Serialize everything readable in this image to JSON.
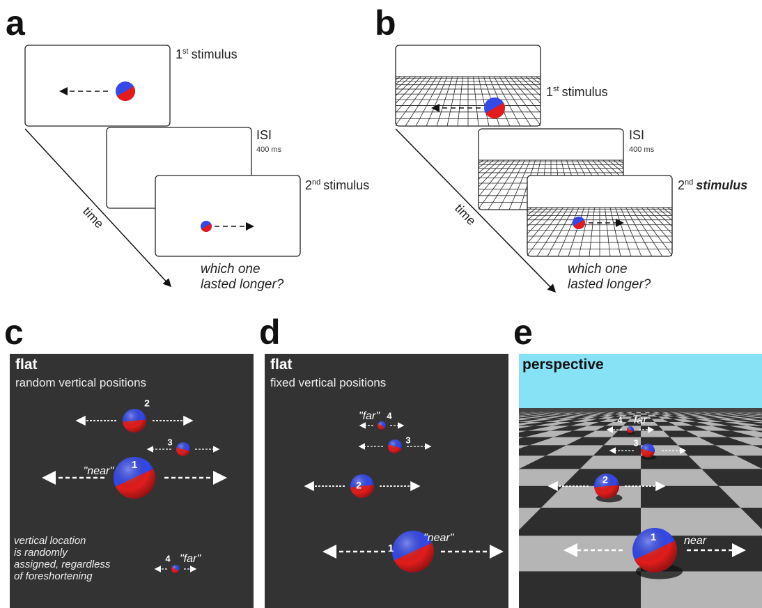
{
  "panels": {
    "a": {
      "letter": "a",
      "first_stimulus": {
        "ordinal": "1",
        "suffix": "st",
        "label": "stimulus"
      },
      "isi": "ISI",
      "isi_duration": "400 ms",
      "second_stimulus": {
        "ordinal": "2",
        "suffix": "nd",
        "label": "stimulus"
      },
      "time": "time",
      "question": [
        "which one",
        "lasted longer?"
      ]
    },
    "b": {
      "letter": "b",
      "first_stimulus": {
        "ordinal": "1",
        "suffix": "st",
        "label": "stimulus"
      },
      "isi": "ISI",
      "isi_duration": "400 ms",
      "second_stimulus": {
        "ordinal": "2",
        "suffix": "nd",
        "label": "stimulus"
      },
      "time": "time",
      "question": [
        "which one",
        "lasted longer?"
      ]
    },
    "c": {
      "letter": "c",
      "title": "flat",
      "subtitle": "random vertical positions",
      "balls": [
        {
          "number": "1",
          "tag": "\"near\""
        },
        {
          "number": "2"
        },
        {
          "number": "3"
        },
        {
          "number": "4",
          "tag": "\"far\""
        }
      ],
      "note": [
        "vertical location",
        "is randomly",
        "assigned, regardless",
        "of foreshortening"
      ]
    },
    "d": {
      "letter": "d",
      "title": "flat",
      "subtitle": "fixed vertical positions",
      "balls": [
        {
          "number": "1",
          "tag": "\"near\""
        },
        {
          "number": "2"
        },
        {
          "number": "3"
        },
        {
          "number": "4",
          "tag": "\"far\""
        }
      ]
    },
    "e": {
      "letter": "e",
      "title": "perspective",
      "balls": [
        {
          "number": "1",
          "tag": "near"
        },
        {
          "number": "2"
        },
        {
          "number": "3"
        },
        {
          "number": "4",
          "tag": "far"
        }
      ]
    }
  }
}
